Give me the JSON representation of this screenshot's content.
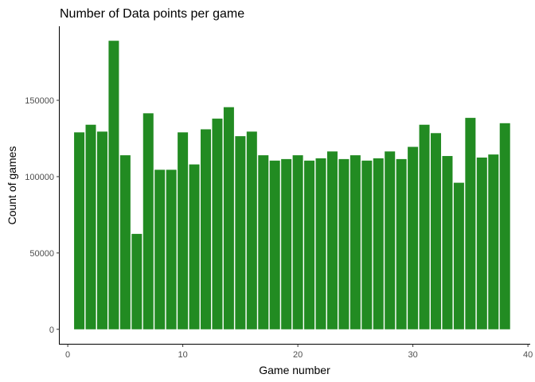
{
  "chart_data": {
    "type": "bar",
    "title": "Number of Data points per game",
    "xlabel": "Game number",
    "ylabel": "Count of games",
    "x": [
      1,
      2,
      3,
      4,
      5,
      6,
      7,
      8,
      9,
      10,
      11,
      12,
      13,
      14,
      15,
      16,
      17,
      18,
      19,
      20,
      21,
      22,
      23,
      24,
      25,
      26,
      27,
      28,
      29,
      30,
      31,
      32,
      33,
      34,
      35,
      36,
      37,
      38
    ],
    "values": [
      129000,
      134000,
      129500,
      189000,
      114000,
      62500,
      141500,
      104500,
      104500,
      129000,
      108000,
      131000,
      138000,
      145500,
      126500,
      129500,
      114000,
      110500,
      111500,
      114000,
      110500,
      112000,
      116500,
      111500,
      114000,
      110500,
      112000,
      116500,
      111500,
      119500,
      134000,
      128500,
      113500,
      96000,
      138500,
      112500,
      114500,
      135000
    ],
    "xlim": [
      -0.7,
      40.2
    ],
    "ylim": [
      -9500,
      198500
    ],
    "xticks": [
      0,
      10,
      20,
      30,
      40
    ],
    "yticks": [
      0,
      50000,
      100000,
      150000
    ],
    "bar_color": "#228B22",
    "grid": false,
    "legend": "none"
  }
}
